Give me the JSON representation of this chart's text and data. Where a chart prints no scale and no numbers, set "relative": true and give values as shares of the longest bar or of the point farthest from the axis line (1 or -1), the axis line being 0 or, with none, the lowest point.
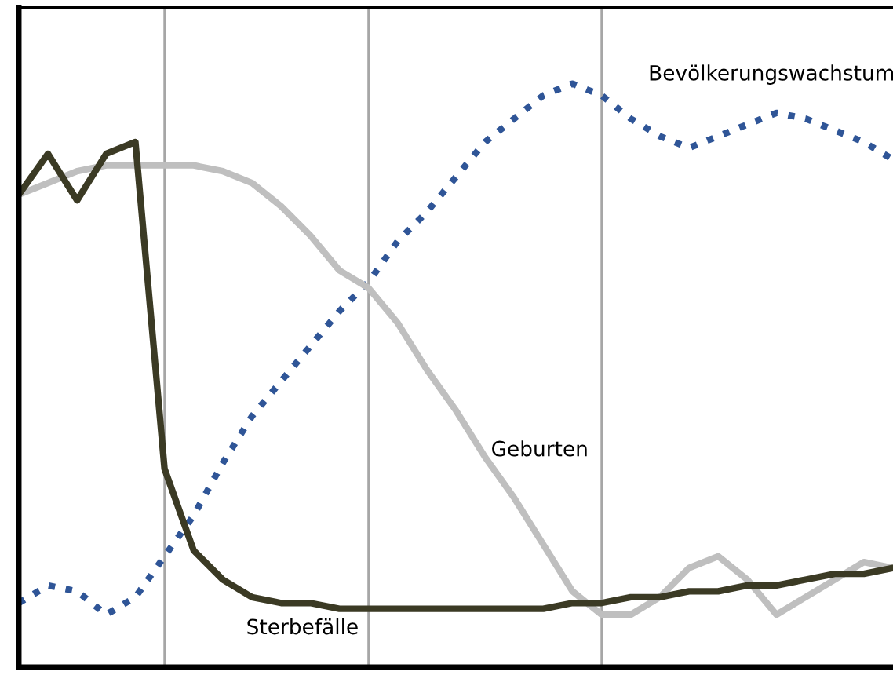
{
  "chart_data": {
    "type": "line",
    "relative": true,
    "categories": [
      null,
      null,
      null,
      null,
      null,
      null,
      null,
      null,
      null,
      null,
      null,
      null,
      null,
      null,
      null,
      null,
      null,
      null,
      null,
      null,
      null,
      null,
      null,
      null,
      null,
      null,
      null,
      null,
      null,
      null,
      null
    ],
    "grid": "x",
    "legend": false,
    "marker": "none",
    "series": [
      {
        "name": "Bevölkerungswachstum",
        "color": "#2f5597",
        "line_style": "dotted",
        "values": [
          0.11,
          0.14,
          0.13,
          0.09,
          0.12,
          0.19,
          0.26,
          0.35,
          0.43,
          0.49,
          0.55,
          0.61,
          0.66,
          0.73,
          0.78,
          0.84,
          0.9,
          0.94,
          0.98,
          1,
          0.98,
          0.94,
          0.91,
          0.89,
          0.91,
          0.93,
          0.95,
          0.94,
          0.92,
          0.9,
          0.87
        ]
      },
      {
        "name": "Geburten",
        "color": "#bfbfbf",
        "line_style": "solid",
        "values": [
          0.81,
          0.83,
          0.85,
          0.86,
          0.86,
          0.86,
          0.86,
          0.85,
          0.83,
          0.79,
          0.74,
          0.68,
          0.65,
          0.59,
          0.51,
          0.44,
          0.36,
          0.29,
          0.21,
          0.13,
          0.09,
          0.09,
          0.12,
          0.17,
          0.19,
          0.15,
          0.09,
          0.12,
          0.15,
          0.18,
          0.17
        ]
      },
      {
        "name": "Sterbefälle",
        "color": "#3b3a24",
        "line_style": "solid",
        "values": [
          0.81,
          0.88,
          0.8,
          0.88,
          0.9,
          0.34,
          0.2,
          0.15,
          0.12,
          0.11,
          0.11,
          0.1,
          0.1,
          0.1,
          0.1,
          0.1,
          0.1,
          0.1,
          0.1,
          0.11,
          0.11,
          0.12,
          0.12,
          0.13,
          0.13,
          0.14,
          0.14,
          0.15,
          0.16,
          0.16,
          0.17
        ]
      }
    ]
  }
}
